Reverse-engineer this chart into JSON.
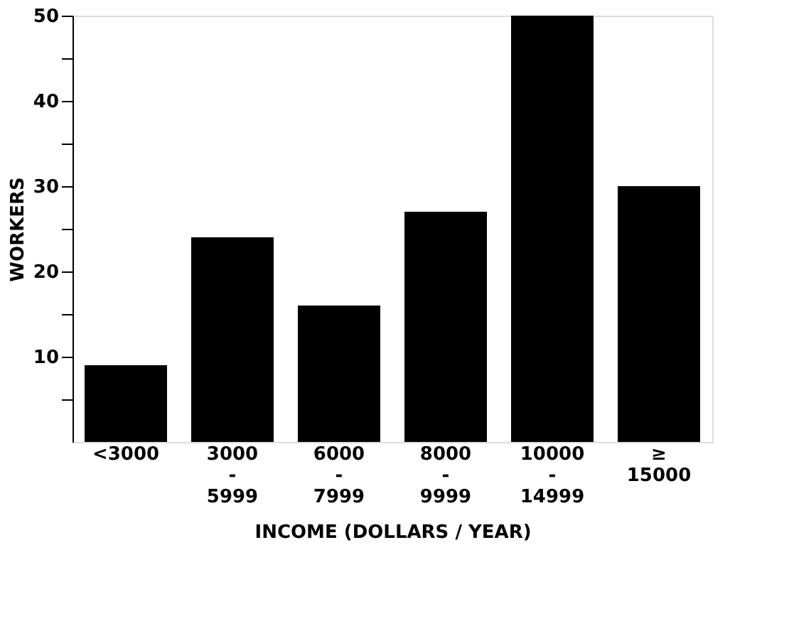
{
  "chart_data": {
    "type": "bar",
    "xlabel": "INCOME (DOLLARS / YEAR)",
    "ylabel": "WORKERS",
    "categories": [
      "<3000",
      "3000 - 5999",
      "6000 - 7999",
      "8000 - 9999",
      "10000 - 14999",
      "≥ 15000"
    ],
    "values": [
      9,
      24,
      16,
      27,
      50,
      30
    ],
    "color": "#000000",
    "ylim": [
      0,
      50
    ],
    "yticks": [
      {
        "value": 5,
        "label": null
      },
      10,
      {
        "value": 15,
        "label": null
      },
      20,
      {
        "value": 25,
        "label": null
      },
      30,
      {
        "value": 35,
        "label": null
      },
      40,
      {
        "value": 45,
        "label": null
      },
      50
    ],
    "grid": false
  }
}
